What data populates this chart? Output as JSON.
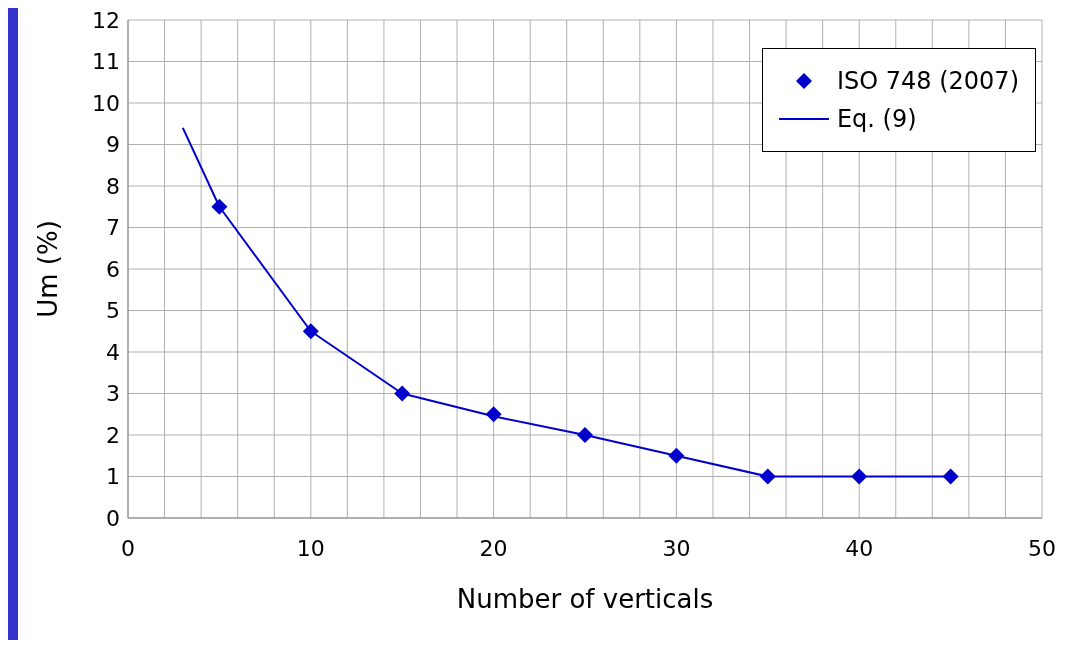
{
  "chart_data": {
    "type": "scatter",
    "xlabel": "Number of verticals",
    "ylabel": "Um (%)",
    "xlim": [
      0,
      50
    ],
    "ylim": [
      0,
      12
    ],
    "xticks": [
      0,
      {
        "value": 2,
        "label": null
      },
      {
        "value": 4,
        "label": null
      },
      {
        "value": 6,
        "label": null
      },
      {
        "value": 8,
        "label": null
      },
      10,
      {
        "value": 12,
        "label": null
      },
      {
        "value": 14,
        "label": null
      },
      {
        "value": 16,
        "label": null
      },
      {
        "value": 18,
        "label": null
      },
      20,
      {
        "value": 22,
        "label": null
      },
      {
        "value": 24,
        "label": null
      },
      {
        "value": 26,
        "label": null
      },
      {
        "value": 28,
        "label": null
      },
      30,
      {
        "value": 32,
        "label": null
      },
      {
        "value": 34,
        "label": null
      },
      {
        "value": 36,
        "label": null
      },
      {
        "value": 38,
        "label": null
      },
      40,
      {
        "value": 42,
        "label": null
      },
      {
        "value": 44,
        "label": null
      },
      {
        "value": 46,
        "label": null
      },
      {
        "value": 48,
        "label": null
      },
      50
    ],
    "yticks": [
      0,
      1,
      2,
      3,
      4,
      5,
      6,
      7,
      8,
      9,
      10,
      11,
      12
    ],
    "grid": true,
    "legend": "top right",
    "marker": "diamond",
    "series": [
      {
        "name": "ISO 748 (2007)",
        "color": "#0000cc",
        "x": [
          5,
          10,
          15,
          20,
          25,
          30,
          35,
          40,
          45
        ],
        "values": [
          7.5,
          4.5,
          3,
          2.5,
          2,
          1.5,
          1,
          1,
          1
        ]
      },
      {
        "name": "Eq. (9)",
        "type": "line",
        "marker": "none",
        "color": "#0000cc",
        "line_style": "solid",
        "x": [
          3,
          5,
          10,
          15,
          20,
          25,
          30,
          35,
          40,
          45
        ],
        "values": [
          9.4,
          7.5,
          4.5,
          3,
          2.45,
          2,
          1.5,
          1,
          1,
          1
        ]
      }
    ]
  }
}
